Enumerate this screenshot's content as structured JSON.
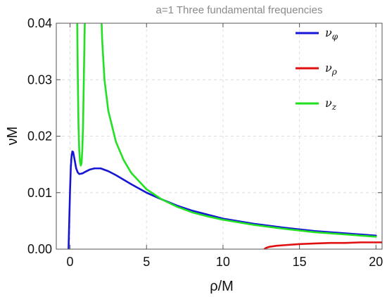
{
  "chart_data": {
    "type": "line",
    "title": "a=1  Three fundamental frequencies",
    "xlabel": "ρ/M",
    "ylabel": "νM",
    "xlim": [
      -0.9,
      20.4
    ],
    "ylim": [
      0,
      0.04
    ],
    "x_ticks": [
      0,
      5,
      10,
      15,
      20
    ],
    "x_tick_labels": [
      "0",
      "5",
      "10",
      "15",
      "20"
    ],
    "y_ticks": [
      0,
      0.01,
      0.02,
      0.03,
      0.04
    ],
    "y_tick_labels": [
      "0.00",
      "0.01",
      "0.02",
      "0.03",
      "0.04"
    ],
    "grid": true,
    "legend_position": "top-right",
    "series": [
      {
        "name": "νφ",
        "legend_main": "ν",
        "legend_sub": "φ",
        "color": "#1515d6",
        "x": [
          -0.1,
          0,
          0.05,
          0.1,
          0.15,
          0.2,
          0.3,
          0.4,
          0.5,
          0.6,
          0.8,
          1.0,
          1.3,
          1.6,
          2.0,
          2.5,
          3.0,
          4.0,
          5.0,
          6.0,
          7.0,
          8.0,
          9.0,
          10.0,
          12.0,
          14.0,
          16.0,
          18.0,
          20.0
        ],
        "y": [
          0,
          0.0105,
          0.0145,
          0.0165,
          0.0173,
          0.0172,
          0.0158,
          0.0143,
          0.0136,
          0.0133,
          0.0134,
          0.0137,
          0.0141,
          0.0143,
          0.0143,
          0.0138,
          0.0131,
          0.0115,
          0.01,
          0.0088,
          0.0077,
          0.0068,
          0.0061,
          0.0054,
          0.0045,
          0.0038,
          0.0032,
          0.0028,
          0.0024
        ]
      },
      {
        "name": "νρ",
        "legend_main": "ν",
        "legend_sub": "ρ",
        "color": "#e01010",
        "x": [
          12.7,
          12.8,
          13.0,
          13.5,
          14.0,
          15.0,
          16.0,
          17.0,
          18.0,
          19.0,
          20.4
        ],
        "y": [
          0,
          0.0002,
          0.0004,
          0.0006,
          0.0007,
          0.0009,
          0.001,
          0.0011,
          0.0011,
          0.0012,
          0.0012
        ]
      },
      {
        "name": "νz",
        "legend_main": "ν",
        "legend_sub": "z",
        "color": "#22e022",
        "segments": [
          {
            "x": [
              0.45,
              0.5,
              0.55,
              0.6,
              0.65,
              0.7,
              0.75,
              0.8,
              0.85,
              0.9,
              0.95,
              1.0
            ],
            "y": [
              0.045,
              0.032,
              0.022,
              0.0175,
              0.0155,
              0.0148,
              0.0152,
              0.0175,
              0.022,
              0.03,
              0.038,
              0.045
            ]
          },
          {
            "x": [
              2.0,
              2.1,
              2.25,
              2.5,
              3.0,
              3.5,
              4.0,
              5.0,
              6.0,
              7.0,
              8.0,
              9.0,
              10.0,
              12.0,
              14.0,
              16.0,
              18.0,
              20.0
            ],
            "y": [
              0.045,
              0.037,
              0.03,
              0.0245,
              0.019,
              0.0158,
              0.0135,
              0.0106,
              0.0088,
              0.0075,
              0.0065,
              0.0058,
              0.0052,
              0.0043,
              0.0036,
              0.003,
              0.0026,
              0.0022
            ]
          }
        ]
      }
    ]
  }
}
